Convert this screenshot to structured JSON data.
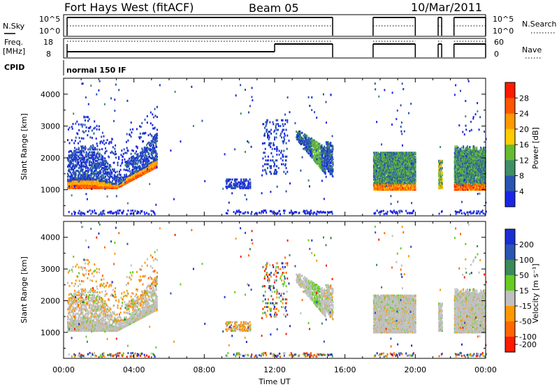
{
  "header": {
    "station": "Fort Hays West (fitACF)",
    "beam": "Beam 05",
    "date": "10/Mar/2011"
  },
  "status_panels": {
    "nsky_label": "N.Sky",
    "nsky_ticks": [
      "10^5",
      "10^0"
    ],
    "nsearch_label": "N.Search",
    "nsearch_ticks": [
      "10^5",
      "10^0"
    ],
    "freq_label": "Freq.",
    "freq_unit": "[MHz]",
    "freq_ticks": [
      "18",
      "8"
    ],
    "nave_label": "Nave",
    "nave_ticks": [
      "60",
      "0"
    ],
    "cpid_label": "CPID",
    "cpid_value": "normal 150 IF"
  },
  "chart_data": [
    {
      "type": "heatmap",
      "name": "power",
      "ylabel": "Slant Range [km]",
      "xlabel": "",
      "ylim": [
        180,
        4500
      ],
      "yticks": [
        "1000",
        "2000",
        "3000",
        "4000"
      ],
      "colorbar_label": "Power [dB]",
      "colorbar_ticks": [
        "4",
        "8",
        "12",
        "16",
        "20",
        "24",
        "28"
      ],
      "colors": [
        "#1a26e6",
        "#2a55b0",
        "#3f8f66",
        "#66bb33",
        "#ffcc00",
        "#ff9900",
        "#ff5500",
        "#ff1a00"
      ],
      "data_windows_ut": [
        [
          0.2,
          5.3
        ],
        [
          9.2,
          15.3
        ],
        [
          17.6,
          20.0
        ],
        [
          21.3,
          21.5
        ],
        [
          22.2,
          24.0
        ]
      ]
    },
    {
      "type": "heatmap",
      "name": "velocity",
      "ylabel": "Slant Range [km]",
      "xlabel": "Time UT",
      "ylim": [
        180,
        4500
      ],
      "yticks": [
        "1000",
        "2000",
        "3000",
        "4000"
      ],
      "xticks": [
        "00:00",
        "04:00",
        "08:00",
        "12:00",
        "16:00",
        "20:00",
        "00:00"
      ],
      "xlim_hours": [
        0,
        24
      ],
      "colorbar_label": "Velocity [m s⁻¹]",
      "colorbar_ticks": [
        "200",
        "100",
        "50",
        "15",
        "-15",
        "-50",
        "-100",
        "-200"
      ],
      "colors": [
        "#1a2ed4",
        "#2a55b0",
        "#3a8a5a",
        "#66cc22",
        "#c0c0c0",
        "#ff9900",
        "#ff6600",
        "#ff1a00"
      ],
      "data_windows_ut": [
        [
          0.2,
          5.3
        ],
        [
          9.2,
          15.3
        ],
        [
          17.6,
          20.0
        ],
        [
          21.3,
          21.5
        ],
        [
          22.2,
          24.0
        ]
      ]
    }
  ]
}
